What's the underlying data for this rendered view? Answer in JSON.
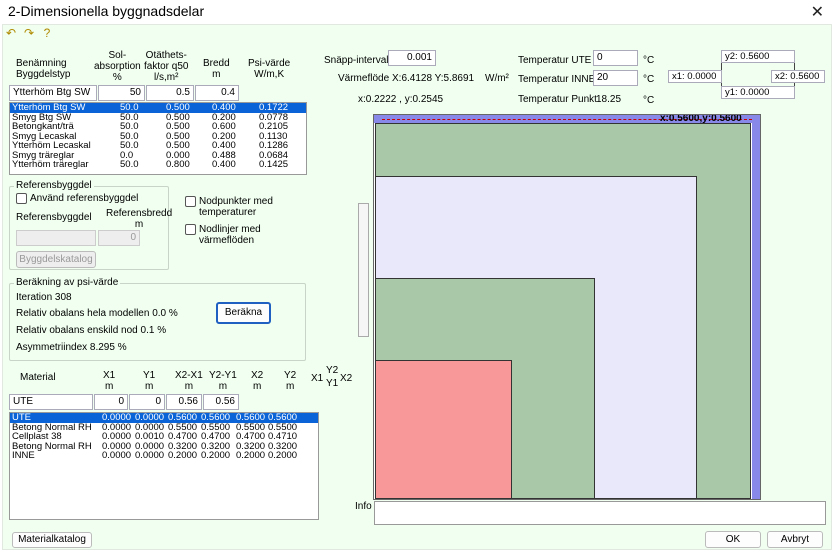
{
  "window": {
    "title": "2-Dimensionella byggnadsdelar",
    "close_label": "✕"
  },
  "toolbar": {
    "icons": [
      "undo-icon",
      "redo-icon",
      "help-icon"
    ]
  },
  "buildpart": {
    "headers": {
      "name": "Benämning\nByggdelstyp",
      "sol": "Sol-\nabsorption\n%",
      "otat": "Otäthets-\nfaktor q50\nl/s,m²",
      "bredd": "Bredd\nm",
      "psi": "Psi-värde\nW/m,K"
    },
    "current": {
      "name": "Ytterhöm Btg SW",
      "sol": "50",
      "otat": "0.5",
      "bredd": "0.4"
    },
    "rows": [
      {
        "name": "Ytterhöm Btg SW",
        "sol": "50.0",
        "otat": "0.500",
        "bredd": "0.400",
        "psi": "0.1722",
        "selected": true
      },
      {
        "name": "Smyg Btg SW",
        "sol": "50.0",
        "otat": "0.500",
        "bredd": "0.200",
        "psi": "0.0778"
      },
      {
        "name": "Betongkant/trä",
        "sol": "50.0",
        "otat": "0.500",
        "bredd": "0.600",
        "psi": "0.2105"
      },
      {
        "name": "Smyg Lecaskal",
        "sol": "50.0",
        "otat": "0.500",
        "bredd": "0.200",
        "psi": "0.1130"
      },
      {
        "name": "Ytterhöm Lecaskal",
        "sol": "50.0",
        "otat": "0.500",
        "bredd": "0.400",
        "psi": "0.1286"
      },
      {
        "name": "Smyg träreglar",
        "sol": "0.0",
        "otat": "0.000",
        "bredd": "0.488",
        "psi": "0.0684"
      },
      {
        "name": "Ytterhöm träreglar",
        "sol": "50.0",
        "otat": "0.800",
        "bredd": "0.400",
        "psi": "0.1425"
      }
    ]
  },
  "reference": {
    "group_title": "Referensbyggdel",
    "use_label": "Använd referensbyggdel",
    "ref_label": "Referensbyggdel",
    "ref_width_label": "Referensbredd\nm",
    "ref_width_value": "0",
    "catalog_button": "Byggdelskatalog"
  },
  "options": {
    "nodes_label": "Nodpunkter med\ntemperaturer",
    "lines_label": "Nodlinjer med\nvärmeflöden"
  },
  "calc": {
    "group_title": "Beräkning av psi-värde",
    "iteration": "Iteration 308",
    "rel_model": "Relativ obalans hela modellen 0.0 %",
    "rel_node": "Relativ obalans enskild nod 0.1 %",
    "asym": "Asymmetriindex 8.295 %",
    "button": "Beräkna"
  },
  "material": {
    "headers": {
      "name": "Material",
      "x1": "X1\nm",
      "y1": "Y1\nm",
      "x2x1": "X2-X1\nm",
      "y2y1": "Y2-Y1\nm",
      "x2": "X2\nm",
      "y2": "Y2\nm"
    },
    "legend": {
      "x1": "X1",
      "y2": "Y2",
      "y1": "Y1",
      "x2": "X2"
    },
    "current": {
      "name": "UTE",
      "x1": "0",
      "y1": "0",
      "x2x1": "0.56",
      "y2y1": "0.56"
    },
    "rows": [
      {
        "name": "UTE",
        "x1": "0.0000",
        "y1": "0.0000",
        "x2x1": "0.5600",
        "y2y1": "0.5600",
        "x2": "0.5600",
        "y2": "0.5600",
        "selected": true
      },
      {
        "name": "Betong Normal RH",
        "x1": "0.0000",
        "y1": "0.0000",
        "x2x1": "0.5500",
        "y2y1": "0.5500",
        "x2": "0.5500",
        "y2": "0.5500"
      },
      {
        "name": "Cellplast 38",
        "x1": "0.0000",
        "y1": "0.0010",
        "x2x1": "0.4700",
        "y2y1": "0.4700",
        "x2": "0.4700",
        "y2": "0.4710"
      },
      {
        "name": "Betong Normal RH",
        "x1": "0.0000",
        "y1": "0.0000",
        "x2x1": "0.3200",
        "y2y1": "0.3200",
        "x2": "0.3200",
        "y2": "0.3200"
      },
      {
        "name": "INNE",
        "x1": "0.0000",
        "y1": "0.0000",
        "x2x1": "0.2000",
        "y2y1": "0.2000",
        "x2": "0.2000",
        "y2": "0.2000"
      }
    ],
    "catalog_button": "Materialkatalog"
  },
  "top": {
    "snap_label": "Snäpp-intervall",
    "snap_value": "0.001",
    "flow_label": "Värmeflöde",
    "flow_value": "X:6.4128 Y:5.8691",
    "flow_unit": "W/m²",
    "coords": "x:0.2222 , y:0.2545",
    "t_ute_label": "Temperatur UTE",
    "t_ute_value": "0",
    "t_inne_label": "Temperatur INNE",
    "t_inne_value": "20",
    "t_punkt_label": "Temperatur Punkt",
    "t_punkt_value": "18.25",
    "deg": "°C"
  },
  "coord_box": {
    "y2": "y2: 0.5600",
    "x1": "x1: 0.0000",
    "x2": "x2: 0.5600",
    "y1": "y1: 0.0000"
  },
  "drawing": {
    "top_label": "x:0.5600,y:0.5600"
  },
  "info_label": "Info",
  "footer": {
    "ok": "OK",
    "cancel": "Avbryt"
  },
  "colors": {
    "selection": "#0a64d8",
    "green": "#a8c8a8",
    "lavender": "#e8e8fa",
    "red": "#f89898",
    "purple": "#8888e8"
  }
}
